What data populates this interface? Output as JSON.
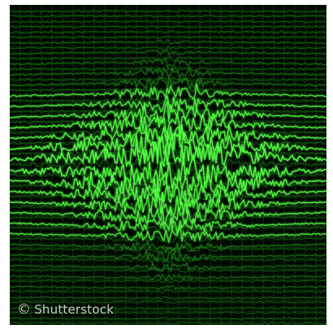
{
  "image": {
    "subject": "green-oscilloscope-waveforms",
    "background_color": "#020802",
    "trace_color_bright": "#55ff44",
    "trace_color_dim": "#1f8a1a",
    "grid_color": "#0d2a0d"
  },
  "watermark": {
    "symbol": "©",
    "text": "Shutterstock"
  }
}
